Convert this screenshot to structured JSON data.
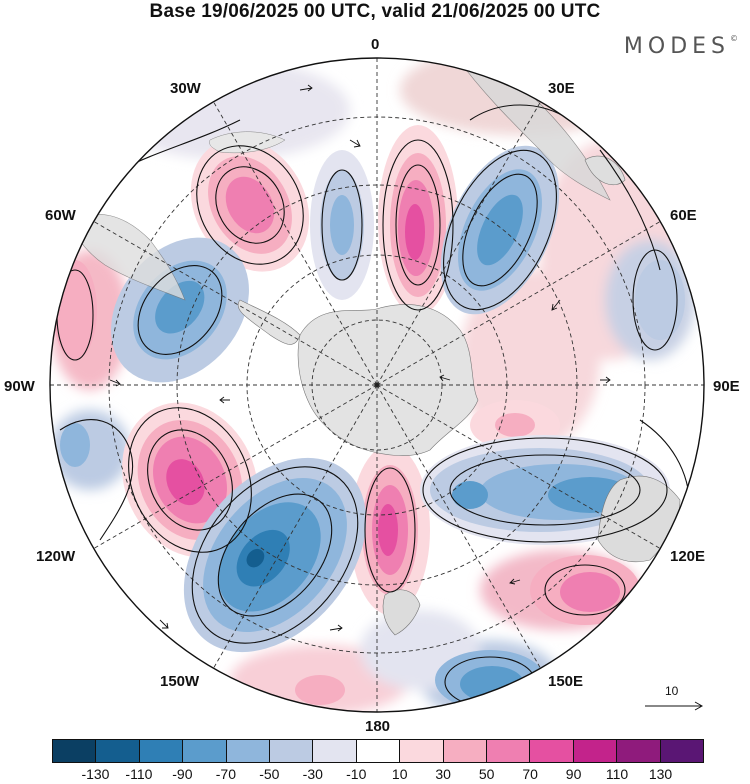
{
  "title": "Base 19/06/2025 00 UTC, valid 21/06/2025 00 UTC",
  "brand": "MODES",
  "brand_mark": "©",
  "labels": {
    "lon_0": "0",
    "lon_30e": "30E",
    "lon_60e": "60E",
    "lon_90e": "90E",
    "lon_120e": "120E",
    "lon_150e": "150E",
    "lon_180": "180",
    "lon_150w": "150W",
    "lon_120w": "120W",
    "lon_90w": "90W",
    "lon_60w": "60W",
    "lon_30w": "30W"
  },
  "reference_vector": "10",
  "colorbar": {
    "colors": [
      "#0b3f63",
      "#145e8f",
      "#2f7fb5",
      "#5b9ccc",
      "#8fb6dc",
      "#bccbe3",
      "#e3e4f0",
      "#ffffff",
      "#fbd9de",
      "#f6aec1",
      "#ef7fb1",
      "#e550a1",
      "#c3238b",
      "#8f1b7c",
      "#5a1674"
    ],
    "ticks": [
      "-130",
      "-110",
      "-90",
      "-70",
      "-50",
      "-30",
      "-10",
      "10",
      "30",
      "50",
      "70",
      "90",
      "110",
      "130"
    ]
  },
  "colors": {
    "land": "#e3e3e3",
    "grid": "#333333"
  }
}
